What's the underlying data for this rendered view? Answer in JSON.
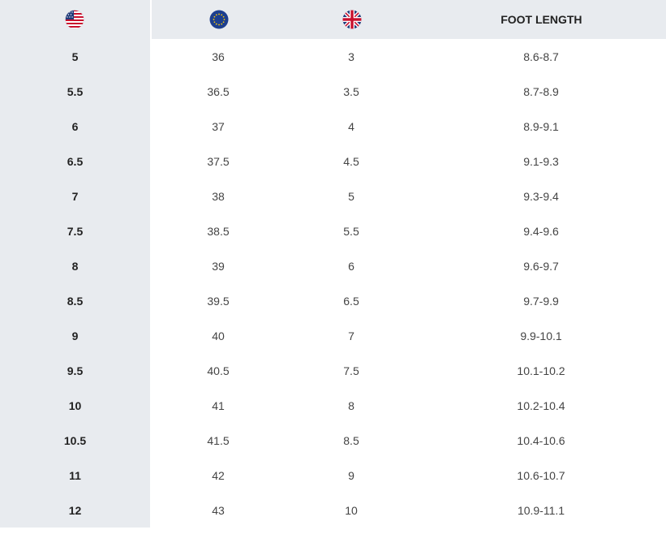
{
  "header": {
    "us_flag_icon": "us-flag-icon",
    "eu_flag_icon": "eu-flag-icon",
    "uk_flag_icon": "uk-flag-icon",
    "foot_length_label": "FOOT LENGTH"
  },
  "rows": [
    {
      "us": "5",
      "eu": "36",
      "uk": "3",
      "foot": "8.6-8.7"
    },
    {
      "us": "5.5",
      "eu": "36.5",
      "uk": "3.5",
      "foot": "8.7-8.9"
    },
    {
      "us": "6",
      "eu": "37",
      "uk": "4",
      "foot": "8.9-9.1"
    },
    {
      "us": "6.5",
      "eu": "37.5",
      "uk": "4.5",
      "foot": "9.1-9.3"
    },
    {
      "us": "7",
      "eu": "38",
      "uk": "5",
      "foot": "9.3-9.4"
    },
    {
      "us": "7.5",
      "eu": "38.5",
      "uk": "5.5",
      "foot": "9.4-9.6"
    },
    {
      "us": "8",
      "eu": "39",
      "uk": "6",
      "foot": "9.6-9.7"
    },
    {
      "us": "8.5",
      "eu": "39.5",
      "uk": "6.5",
      "foot": "9.7-9.9"
    },
    {
      "us": "9",
      "eu": "40",
      "uk": "7",
      "foot": "9.9-10.1"
    },
    {
      "us": "9.5",
      "eu": "40.5",
      "uk": "7.5",
      "foot": "10.1-10.2"
    },
    {
      "us": "10",
      "eu": "41",
      "uk": "8",
      "foot": "10.2-10.4"
    },
    {
      "us": "10.5",
      "eu": "41.5",
      "uk": "8.5",
      "foot": "10.4-10.6"
    },
    {
      "us": "11",
      "eu": "42",
      "uk": "9",
      "foot": "10.6-10.7"
    },
    {
      "us": "12",
      "eu": "43",
      "uk": "10",
      "foot": "10.9-11.1"
    }
  ],
  "colors": {
    "header_bg": "#e8ebef",
    "first_column_bg": "#e8ebef",
    "text": "#333333"
  }
}
